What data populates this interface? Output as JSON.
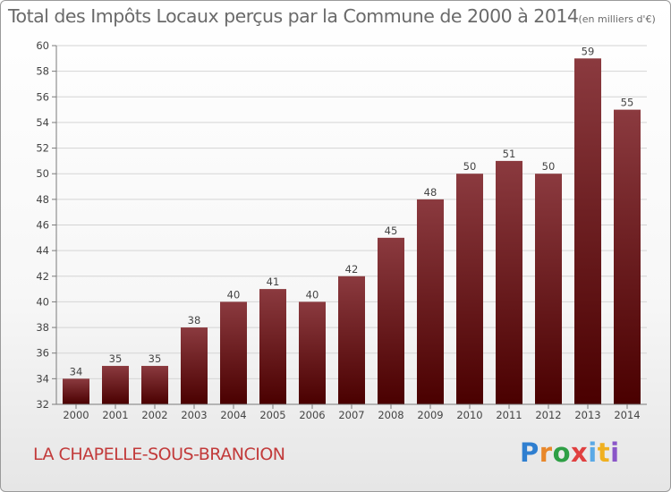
{
  "chart_data": {
    "type": "bar",
    "title": "Total des Impôts Locaux perçus par la Commune de 2000 à 2014",
    "title_unit": "(en milliers d'€)",
    "categories": [
      "2000",
      "2001",
      "2002",
      "2003",
      "2004",
      "2005",
      "2006",
      "2007",
      "2008",
      "2009",
      "2010",
      "2011",
      "2012",
      "2013",
      "2014"
    ],
    "values": [
      34,
      35,
      35,
      38,
      40,
      41,
      40,
      42,
      45,
      48,
      50,
      51,
      50,
      59,
      55
    ],
    "ylim": [
      32,
      60
    ],
    "yticks": [
      32,
      34,
      36,
      38,
      40,
      42,
      44,
      46,
      48,
      50,
      52,
      54,
      56,
      58,
      60
    ],
    "xlabel": "",
    "ylabel": "",
    "grid": true,
    "bar_color_top": "#8b3a3f",
    "bar_color_bottom": "#4a0000"
  },
  "footer": {
    "commune": "LA CHAPELLE-SOUS-BRANCION",
    "logo_letters": [
      "P",
      "r",
      "o",
      "x",
      "i",
      "t",
      "i"
    ]
  }
}
